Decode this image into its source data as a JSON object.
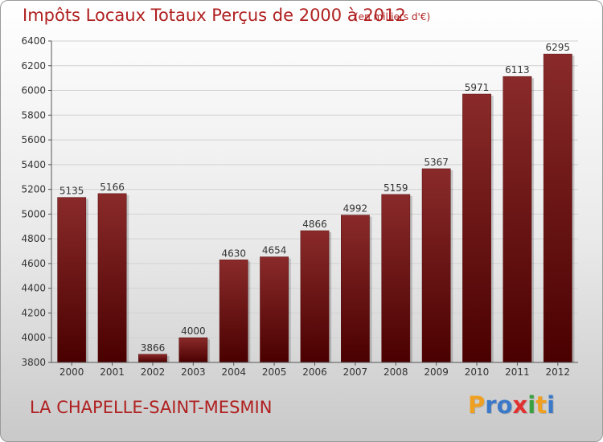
{
  "title": "Impôts Locaux Totaux Perçus de 2000 à 2012",
  "subtitle": "(en milliers d'€)",
  "commune": "LA CHAPELLE-SAINT-MESMIN",
  "logo": {
    "letters": [
      "P",
      "r",
      "o",
      "x",
      "i",
      "t",
      "i"
    ],
    "colors": [
      "#f0a020",
      "#3a78c8",
      "#3a78c8",
      "#e23030",
      "#3aa040",
      "#f0a020",
      "#3a78c8"
    ]
  },
  "chart_data": {
    "type": "bar",
    "categories": [
      "2000",
      "2001",
      "2002",
      "2003",
      "2004",
      "2005",
      "2006",
      "2007",
      "2008",
      "2009",
      "2010",
      "2011",
      "2012"
    ],
    "values": [
      5135,
      5166,
      3866,
      4000,
      4630,
      4654,
      4866,
      4992,
      5159,
      5367,
      5971,
      6113,
      6295
    ],
    "ylim": [
      3800,
      6400
    ],
    "yticks": [
      3800,
      4000,
      4200,
      4400,
      4600,
      4800,
      5000,
      5200,
      5400,
      5600,
      5800,
      6000,
      6200,
      6400
    ],
    "bar_color_top": "#8a2a2a",
    "bar_color_bottom": "#4a0000",
    "grid": true,
    "legend": "none"
  }
}
